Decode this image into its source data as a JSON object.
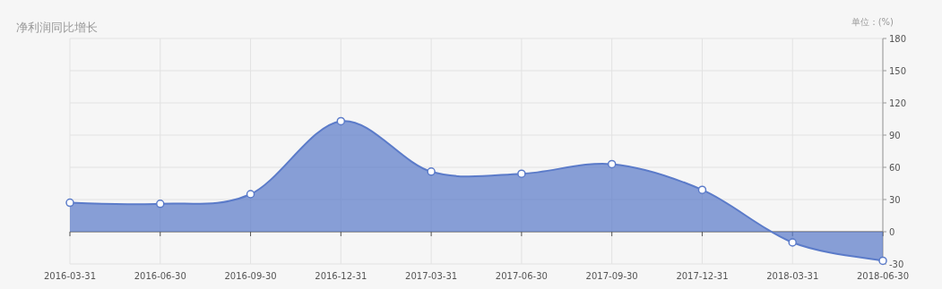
{
  "chart_data": {
    "type": "area",
    "title": "净利润同比增长",
    "ylabel": "单位：(%)",
    "categories": [
      "2016-03-31",
      "2016-06-30",
      "2016-09-30",
      "2016-12-31",
      "2017-03-31",
      "2017-06-30",
      "2017-09-30",
      "2017-12-31",
      "2018-03-31",
      "2018-06-30"
    ],
    "series": [
      {
        "color": "#5b7bc9",
        "values": [
          27,
          26,
          35,
          103,
          56,
          54,
          63,
          39,
          -10,
          -27
        ]
      }
    ],
    "ylim": [
      -30,
      180
    ],
    "yticks": [
      -30,
      0,
      30,
      60,
      90,
      120,
      150,
      180
    ],
    "grid": true,
    "marker": "circle",
    "line_style": "solid"
  }
}
